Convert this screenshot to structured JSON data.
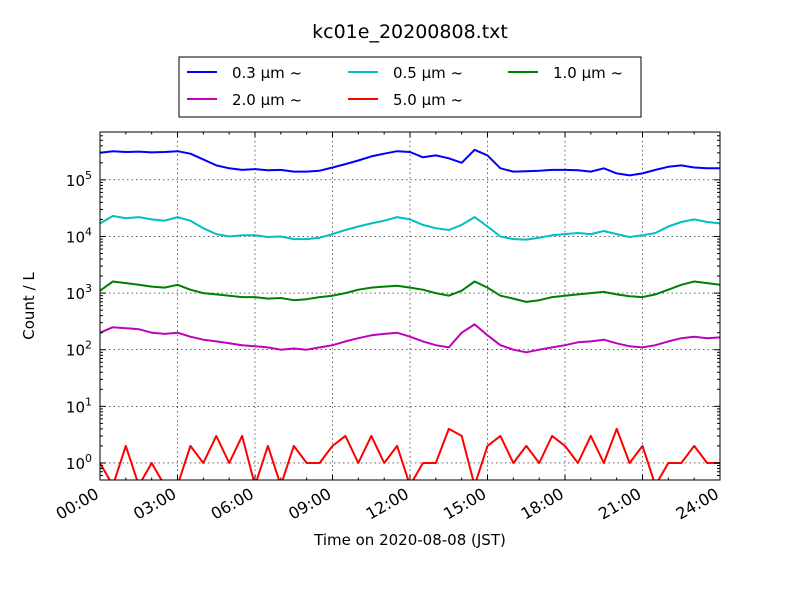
{
  "chart_data": {
    "type": "line",
    "title": "kc01e_20200808.txt",
    "xlabel": "Time on 2020-08-08 (JST)",
    "ylabel": "Count / L",
    "yscale": "log",
    "xlim_hours": [
      0,
      24
    ],
    "ylim": [
      0.5,
      700000
    ],
    "grid": true,
    "legend_position": "top",
    "x_ticks": [
      "00:00",
      "03:00",
      "06:00",
      "09:00",
      "12:00",
      "15:00",
      "18:00",
      "21:00",
      "24:00"
    ],
    "y_ticks": [
      {
        "value": 1,
        "base": "10",
        "exp": "0"
      },
      {
        "value": 10,
        "base": "10",
        "exp": "1"
      },
      {
        "value": 100,
        "base": "10",
        "exp": "2"
      },
      {
        "value": 1000,
        "base": "10",
        "exp": "3"
      },
      {
        "value": 10000,
        "base": "10",
        "exp": "4"
      },
      {
        "value": 100000,
        "base": "10",
        "exp": "5"
      }
    ],
    "series": [
      {
        "name": "0.3 μm ~",
        "legend_size": "0.3",
        "color": "#0000ff",
        "x": [
          0,
          0.5,
          1,
          1.5,
          2,
          2.5,
          3,
          3.5,
          4,
          4.5,
          5,
          5.5,
          6,
          6.5,
          7,
          7.5,
          8,
          8.5,
          9,
          9.5,
          10,
          10.5,
          11,
          11.5,
          12,
          12.5,
          13,
          13.5,
          14,
          14.5,
          15,
          15.5,
          16,
          16.5,
          17,
          17.5,
          18,
          18.5,
          19,
          19.5,
          20,
          20.5,
          21,
          21.5,
          22,
          22.5,
          23,
          23.5,
          24
        ],
        "y": [
          300000,
          320000,
          310000,
          315000,
          305000,
          310000,
          320000,
          290000,
          230000,
          180000,
          160000,
          150000,
          155000,
          148000,
          150000,
          140000,
          140000,
          145000,
          165000,
          190000,
          220000,
          260000,
          290000,
          320000,
          310000,
          250000,
          270000,
          240000,
          200000,
          340000,
          270000,
          160000,
          140000,
          142000,
          145000,
          150000,
          150000,
          148000,
          140000,
          160000,
          130000,
          120000,
          130000,
          150000,
          170000,
          180000,
          165000,
          160000,
          160000
        ]
      },
      {
        "name": "0.5 μm ~",
        "legend_size": "0.5",
        "color": "#00bfbf",
        "x": [
          0,
          0.5,
          1,
          1.5,
          2,
          2.5,
          3,
          3.5,
          4,
          4.5,
          5,
          5.5,
          6,
          6.5,
          7,
          7.5,
          8,
          8.5,
          9,
          9.5,
          10,
          10.5,
          11,
          11.5,
          12,
          12.5,
          13,
          13.5,
          14,
          14.5,
          15,
          15.5,
          16,
          16.5,
          17,
          17.5,
          18,
          18.5,
          19,
          19.5,
          20,
          20.5,
          21,
          21.5,
          22,
          22.5,
          23,
          23.5,
          24
        ],
        "y": [
          17000,
          23000,
          21000,
          22000,
          20000,
          19000,
          22000,
          19000,
          14000,
          11000,
          10000,
          10500,
          10500,
          9800,
          10000,
          9000,
          9000,
          9500,
          11000,
          13000,
          15000,
          17000,
          19000,
          22000,
          20000,
          16000,
          14000,
          13000,
          16000,
          22000,
          15000,
          10000,
          9000,
          8800,
          9500,
          10500,
          11000,
          11500,
          11000,
          12500,
          11000,
          9800,
          10500,
          11500,
          15000,
          18000,
          20000,
          18000,
          17000
        ]
      },
      {
        "name": "1.0 μm ~",
        "legend_size": "1.0",
        "color": "#008000",
        "x": [
          0,
          0.5,
          1,
          1.5,
          2,
          2.5,
          3,
          3.5,
          4,
          4.5,
          5,
          5.5,
          6,
          6.5,
          7,
          7.5,
          8,
          8.5,
          9,
          9.5,
          10,
          10.5,
          11,
          11.5,
          12,
          12.5,
          13,
          13.5,
          14,
          14.5,
          15,
          15.5,
          16,
          16.5,
          17,
          17.5,
          18,
          18.5,
          19,
          19.5,
          20,
          20.5,
          21,
          21.5,
          22,
          22.5,
          23,
          23.5,
          24
        ],
        "y": [
          1100,
          1600,
          1500,
          1400,
          1300,
          1250,
          1400,
          1150,
          1000,
          950,
          900,
          850,
          850,
          800,
          820,
          750,
          780,
          850,
          900,
          1000,
          1150,
          1250,
          1300,
          1350,
          1250,
          1150,
          1000,
          900,
          1100,
          1600,
          1250,
          900,
          800,
          700,
          750,
          850,
          900,
          950,
          1000,
          1050,
          950,
          880,
          850,
          950,
          1150,
          1400,
          1600,
          1500,
          1400
        ]
      },
      {
        "name": "2.0 μm ~",
        "legend_size": "2.0",
        "color": "#bf00bf",
        "x": [
          0,
          0.5,
          1,
          1.5,
          2,
          2.5,
          3,
          3.5,
          4,
          4.5,
          5,
          5.5,
          6,
          6.5,
          7,
          7.5,
          8,
          8.5,
          9,
          9.5,
          10,
          10.5,
          11,
          11.5,
          12,
          12.5,
          13,
          13.5,
          14,
          14.5,
          15,
          15.5,
          16,
          16.5,
          17,
          17.5,
          18,
          18.5,
          19,
          19.5,
          20,
          20.5,
          21,
          21.5,
          22,
          22.5,
          23,
          23.5,
          24
        ],
        "y": [
          200,
          250,
          240,
          230,
          200,
          190,
          200,
          170,
          150,
          140,
          130,
          120,
          115,
          110,
          100,
          105,
          100,
          110,
          120,
          140,
          160,
          180,
          190,
          200,
          170,
          140,
          120,
          110,
          200,
          280,
          180,
          120,
          100,
          90,
          100,
          110,
          120,
          135,
          140,
          150,
          130,
          115,
          110,
          120,
          140,
          160,
          170,
          160,
          165
        ]
      },
      {
        "name": "5.0 μm ~",
        "legend_size": "5.0",
        "color": "#ff0000",
        "x": [
          0,
          0.5,
          1,
          1.5,
          2,
          2.5,
          3,
          3.5,
          4,
          4.5,
          5,
          5.5,
          6,
          6.5,
          7,
          7.5,
          8,
          8.5,
          9,
          9.5,
          10,
          10.5,
          11,
          11.5,
          12,
          12.5,
          13,
          13.5,
          14,
          14.5,
          15,
          15.5,
          16,
          16.5,
          17,
          17.5,
          18,
          18.5,
          19,
          19.5,
          20,
          20.5,
          21,
          21.5,
          22,
          22.5,
          23,
          23.5,
          24
        ],
        "y": [
          1,
          0.4,
          2,
          0.4,
          1,
          0.4,
          0.4,
          2,
          1,
          3,
          1,
          3,
          0.4,
          2,
          0.4,
          2,
          1,
          1,
          2,
          3,
          1,
          3,
          1,
          2,
          0.4,
          1,
          1,
          4,
          3,
          0.4,
          2,
          3,
          1,
          2,
          1,
          3,
          2,
          1,
          3,
          1,
          4,
          1,
          2,
          0.4,
          1,
          1,
          2,
          1,
          1
        ]
      }
    ]
  }
}
